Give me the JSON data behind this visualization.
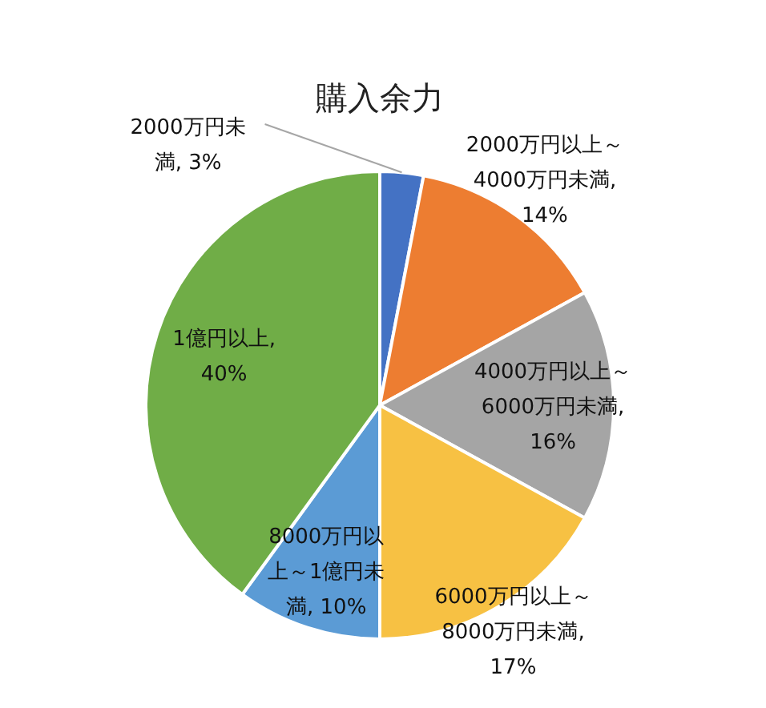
{
  "chart_data": {
    "type": "pie",
    "title": "購入余力",
    "categories": [
      "2000万円未満",
      "2000万円以上～4000万円未満",
      "4000万円以上～6000万円未満",
      "6000万円以上～8000万円未満",
      "8000万円以上～1億円未満",
      "1億円以上"
    ],
    "values": [
      3,
      14,
      16,
      17,
      10,
      40
    ],
    "colors": [
      "#4472c4",
      "#ed7d31",
      "#a5a5a5",
      "#f7c143",
      "#5b9bd5",
      "#70ad47"
    ],
    "value_labels": [
      ", 3%",
      ", 14%",
      ", 16%",
      ", 17%",
      ", 10%",
      ", 40%"
    ]
  }
}
